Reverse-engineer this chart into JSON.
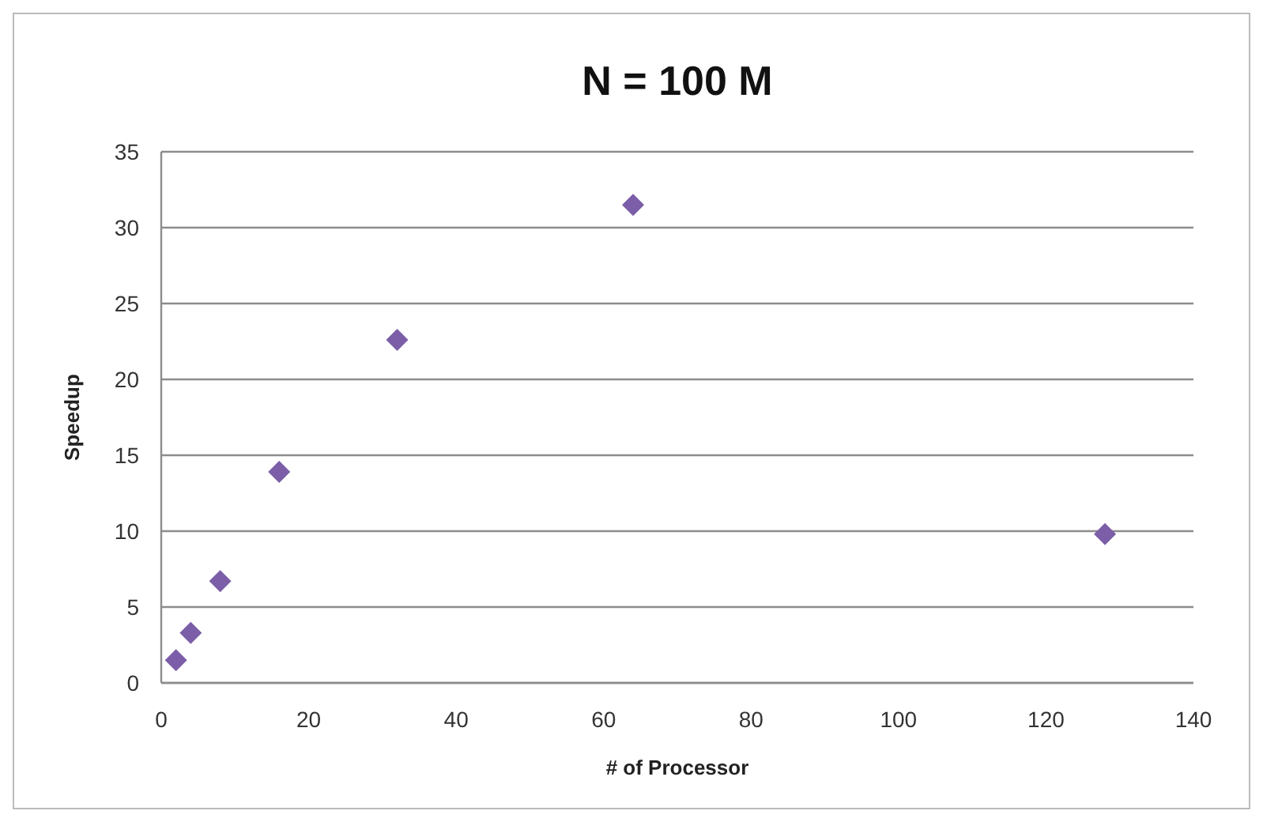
{
  "chart_data": {
    "type": "scatter",
    "title": "N = 100 M",
    "xlabel": "# of Processor",
    "ylabel": "Speedup",
    "x": [
      2,
      4,
      8,
      16,
      32,
      64,
      128
    ],
    "series": [
      {
        "color": "#7b5ea7",
        "values": [
          1.5,
          3.3,
          6.7,
          13.9,
          22.6,
          31.5,
          9.8
        ]
      }
    ],
    "xlim": [
      0,
      140
    ],
    "xticks": [
      0,
      20,
      40,
      60,
      80,
      100,
      120,
      140
    ],
    "ylim": [
      0,
      35
    ],
    "yticks": [
      0,
      5,
      10,
      15,
      20,
      25,
      30,
      35
    ],
    "grid": "y",
    "marker": "diamond"
  }
}
